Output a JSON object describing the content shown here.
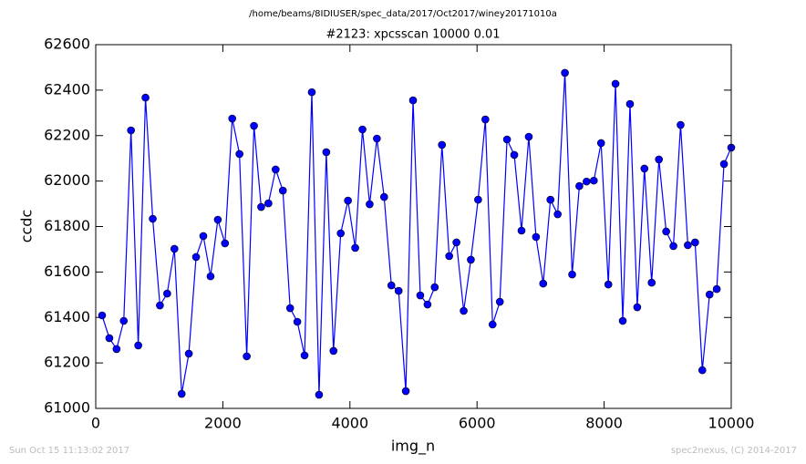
{
  "chart_data": {
    "type": "line",
    "suptitle": "/home/beams/8IDIUSER/spec_data/2017/Oct2017/winey20171010a",
    "title": "#2123: xpcsscan 10000 0.01",
    "xlabel": "img_n",
    "ylabel": "ccdc",
    "footer_left": "Sun Oct 15 11:13:02 2017",
    "footer_right": "spec2nexus, (C) 2014-2017",
    "x": [
      100,
      214,
      328,
      441,
      555,
      669,
      783,
      897,
      1010,
      1124,
      1238,
      1352,
      1465,
      1579,
      1693,
      1807,
      1921,
      2034,
      2148,
      2262,
      2376,
      2490,
      2603,
      2717,
      2831,
      2945,
      3059,
      3172,
      3286,
      3400,
      3514,
      3628,
      3741,
      3855,
      3969,
      4083,
      4197,
      4310,
      4424,
      4538,
      4652,
      4766,
      4879,
      4993,
      5107,
      5221,
      5334,
      5448,
      5562,
      5676,
      5790,
      5903,
      6017,
      6131,
      6245,
      6359,
      6472,
      6586,
      6700,
      6814,
      6928,
      7041,
      7155,
      7269,
      7383,
      7497,
      7610,
      7724,
      7838,
      7952,
      8066,
      8179,
      8293,
      8407,
      8521,
      8634,
      8748,
      8862,
      8976,
      9090,
      9203,
      9317,
      9431,
      9545,
      9659,
      9772,
      9886,
      10000
    ],
    "series": [
      {
        "name": "ccdc",
        "color": "#0000ff",
        "values": [
          61409,
          61309,
          61261,
          61385,
          62223,
          61277,
          62367,
          61834,
          61453,
          61505,
          61702,
          61064,
          61241,
          61666,
          61758,
          61581,
          61830,
          61726,
          62275,
          62119,
          61229,
          62243,
          61886,
          61902,
          62051,
          61958,
          61441,
          61381,
          61233,
          62391,
          61060,
          62127,
          61253,
          61770,
          61914,
          61706,
          62227,
          61898,
          62187,
          61930,
          61541,
          61517,
          61076,
          62355,
          61497,
          61457,
          61533,
          62159,
          61670,
          61730,
          61429,
          61654,
          61918,
          62271,
          61369,
          61469,
          62183,
          62115,
          61782,
          62195,
          61754,
          61549,
          61918,
          61854,
          62476,
          61589,
          61978,
          61998,
          62002,
          62167,
          61545,
          62428,
          61385,
          62339,
          61445,
          62055,
          61553,
          62095,
          61778,
          61714,
          62247,
          61718,
          61730,
          61168,
          61501,
          61525,
          62075,
          62147
        ]
      }
    ],
    "xlim": [
      0,
      10000
    ],
    "xticks": [
      0,
      2000,
      4000,
      6000,
      8000,
      10000
    ],
    "ylim": [
      61000,
      62600
    ],
    "yticks": [
      61000,
      61200,
      61400,
      61600,
      61800,
      62000,
      62200,
      62400,
      62600
    ],
    "grid": false
  }
}
